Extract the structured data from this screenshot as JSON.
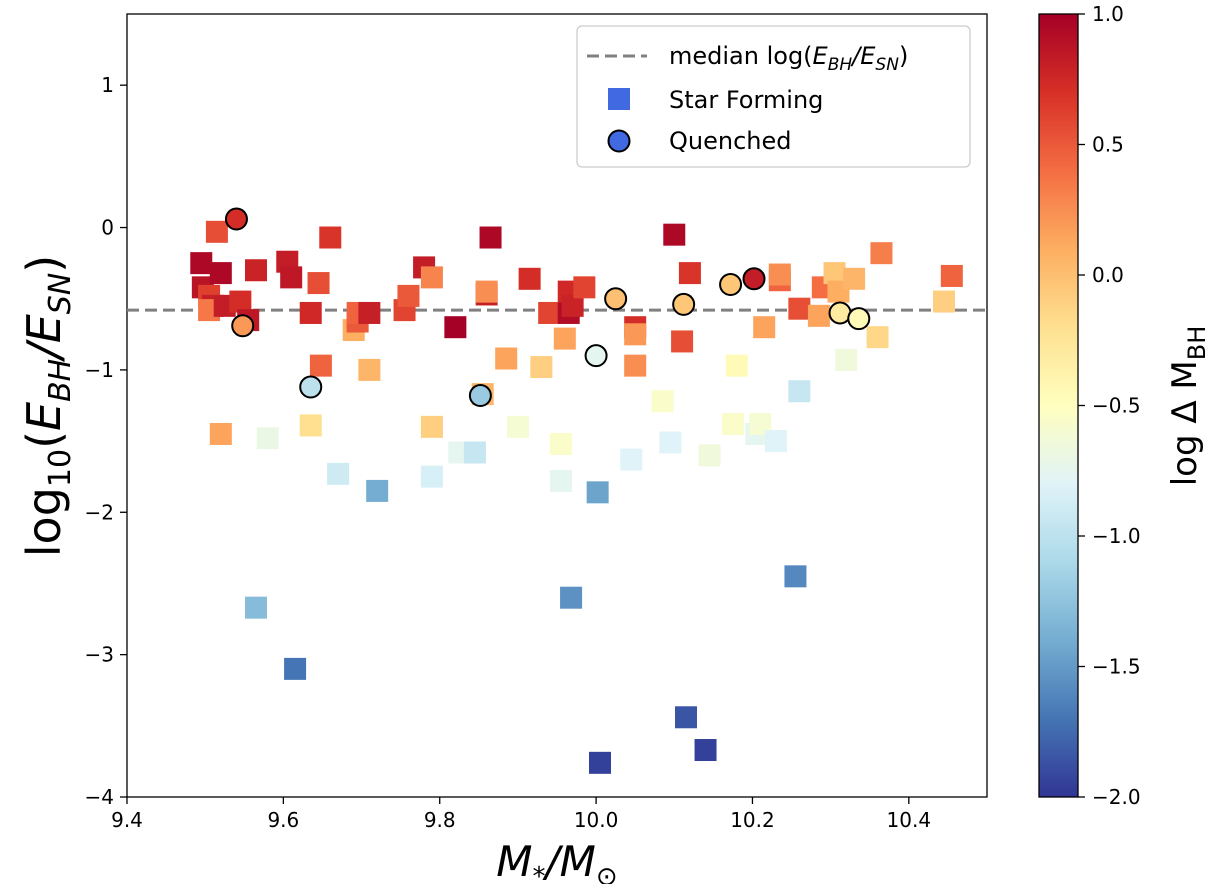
{
  "chart_data": {
    "type": "scatter",
    "xlabel": "M*/M⊙",
    "ylabel": "log10(EBH/ESN)",
    "xlim": [
      9.4,
      10.5
    ],
    "ylim": [
      -4,
      1.5
    ],
    "xticks": [
      "9.4",
      "9.6",
      "9.8",
      "10.0",
      "10.2",
      "10.4"
    ],
    "xtick_values": [
      9.4,
      9.6,
      9.8,
      10.0,
      10.2,
      10.4
    ],
    "yticks": [
      "−4",
      "−3",
      "−2",
      "−1",
      "0",
      "1"
    ],
    "ytick_values": [
      -4,
      -3,
      -2,
      -1,
      0,
      1
    ],
    "grid": false,
    "legend_position": "top-right",
    "legend": {
      "median_label": "median log(EBH/ESN)",
      "star_forming_label": "Star Forming",
      "quenched_label": "Quenched"
    },
    "median_log_ratio": -0.58,
    "colorbar": {
      "label": "log Δ MBH",
      "range": [
        -2.0,
        1.0
      ],
      "ticks": [
        "−2.0",
        "−1.5",
        "−1.0",
        "−0.5",
        "0.0",
        "0.5",
        "1.0"
      ],
      "tick_values": [
        -2.0,
        -1.5,
        -1.0,
        -0.5,
        0.0,
        0.5,
        1.0
      ],
      "colormap": "RdYlBu_r"
    },
    "series": [
      {
        "name": "Star Forming",
        "marker": "square",
        "points": [
          [
            9.495,
            -0.25,
            0.95
          ],
          [
            9.497,
            -0.42,
            0.88
          ],
          [
            9.505,
            -0.48,
            0.62
          ],
          [
            9.51,
            -0.55,
            0.8
          ],
          [
            9.505,
            -0.58,
            0.35
          ],
          [
            9.515,
            -0.03,
            0.55
          ],
          [
            9.52,
            -0.32,
            0.95
          ],
          [
            9.525,
            -0.55,
            0.82
          ],
          [
            9.52,
            -1.45,
            0.15
          ],
          [
            9.545,
            -0.52,
            0.72
          ],
          [
            9.555,
            -0.65,
            0.85
          ],
          [
            9.565,
            -0.3,
            0.78
          ],
          [
            9.565,
            -2.67,
            -1.3
          ],
          [
            9.58,
            -1.48,
            -0.7
          ],
          [
            9.605,
            -0.24,
            0.82
          ],
          [
            9.61,
            -0.35,
            0.85
          ],
          [
            9.615,
            -3.1,
            -1.7
          ],
          [
            9.635,
            -0.6,
            0.75
          ],
          [
            9.635,
            -1.39,
            -0.2
          ],
          [
            9.645,
            -0.39,
            0.55
          ],
          [
            9.648,
            -0.97,
            0.45
          ],
          [
            9.66,
            -0.07,
            0.68
          ],
          [
            9.67,
            -1.73,
            -0.9
          ],
          [
            9.69,
            -0.72,
            0.1
          ],
          [
            9.695,
            -0.66,
            0.5
          ],
          [
            9.695,
            -0.6,
            0.45
          ],
          [
            9.71,
            -0.6,
            0.8
          ],
          [
            9.71,
            -1.0,
            0.05
          ],
          [
            9.72,
            -1.85,
            -1.4
          ],
          [
            9.755,
            -0.58,
            0.6
          ],
          [
            9.76,
            -0.48,
            0.5
          ],
          [
            9.78,
            -0.28,
            0.82
          ],
          [
            9.79,
            -0.35,
            0.3
          ],
          [
            9.79,
            -1.75,
            -0.85
          ],
          [
            9.79,
            -1.4,
            -0.1
          ],
          [
            9.82,
            -0.7,
            1.0
          ],
          [
            9.825,
            -1.58,
            -0.75
          ],
          [
            9.845,
            -1.58,
            -0.95
          ],
          [
            9.855,
            -1.17,
            0.05
          ],
          [
            9.86,
            -0.47,
            0.8
          ],
          [
            9.865,
            -0.07,
            0.95
          ],
          [
            9.86,
            -0.45,
            0.25
          ],
          [
            9.885,
            -0.92,
            0.15
          ],
          [
            9.9,
            -1.4,
            -0.6
          ],
          [
            9.915,
            -0.36,
            0.72
          ],
          [
            9.93,
            -0.98,
            -0.1
          ],
          [
            9.94,
            -0.6,
            0.6
          ],
          [
            9.955,
            -1.52,
            -0.55
          ],
          [
            9.955,
            -1.78,
            -0.75
          ],
          [
            9.96,
            -0.78,
            0.15
          ],
          [
            9.965,
            -0.6,
            0.92
          ],
          [
            9.965,
            -0.45,
            0.75
          ],
          [
            9.97,
            -0.55,
            0.78
          ],
          [
            9.968,
            -2.6,
            -1.55
          ],
          [
            9.985,
            -0.42,
            0.6
          ],
          [
            10.002,
            -1.86,
            -1.45
          ],
          [
            10.045,
            -1.63,
            -0.8
          ],
          [
            10.05,
            -0.7,
            0.72
          ],
          [
            10.05,
            -0.75,
            0.2
          ],
          [
            10.05,
            -0.97,
            0.25
          ],
          [
            10.085,
            -1.22,
            -0.55
          ],
          [
            10.095,
            -1.51,
            -0.8
          ],
          [
            10.1,
            -0.05,
            0.95
          ],
          [
            10.11,
            -0.8,
            0.55
          ],
          [
            10.115,
            -3.44,
            -1.85
          ],
          [
            10.12,
            -0.32,
            0.68
          ],
          [
            10.14,
            -3.67,
            -1.95
          ],
          [
            10.145,
            -1.6,
            -0.65
          ],
          [
            10.175,
            -1.38,
            -0.55
          ],
          [
            10.18,
            -0.97,
            -0.45
          ],
          [
            10.205,
            -1.45,
            -0.75
          ],
          [
            10.21,
            -1.38,
            -0.6
          ],
          [
            10.215,
            -0.7,
            0.15
          ],
          [
            10.23,
            -1.5,
            -0.8
          ],
          [
            10.235,
            -0.37,
            0.45
          ],
          [
            10.235,
            -0.33,
            0.25
          ],
          [
            10.255,
            -2.45,
            -1.6
          ],
          [
            10.26,
            -1.15,
            -0.95
          ],
          [
            10.26,
            -0.57,
            0.55
          ],
          [
            10.285,
            -0.62,
            0.15
          ],
          [
            10.29,
            -0.42,
            0.4
          ],
          [
            10.305,
            -0.32,
            -0.05
          ],
          [
            10.31,
            -0.45,
            0.1
          ],
          [
            10.32,
            -0.93,
            -0.65
          ],
          [
            10.33,
            -0.36,
            0.05
          ],
          [
            10.36,
            -0.77,
            -0.15
          ],
          [
            10.365,
            -0.18,
            0.32
          ],
          [
            10.445,
            -0.52,
            -0.1
          ],
          [
            10.455,
            -0.34,
            0.45
          ],
          [
            10.005,
            -3.76,
            -1.95
          ]
        ]
      },
      {
        "name": "Quenched",
        "marker": "circle",
        "points": [
          [
            9.54,
            0.06,
            0.72
          ],
          [
            9.548,
            -0.69,
            0.2
          ],
          [
            9.635,
            -1.12,
            -1.0
          ],
          [
            9.852,
            -1.18,
            -1.2
          ],
          [
            10.0,
            -0.9,
            -0.75
          ],
          [
            10.025,
            -0.5,
            0.0
          ],
          [
            10.112,
            -0.54,
            -0.05
          ],
          [
            10.172,
            -0.4,
            -0.05
          ],
          [
            10.202,
            -0.36,
            0.82
          ],
          [
            10.312,
            -0.6,
            -0.3
          ],
          [
            10.336,
            -0.64,
            -0.45
          ]
        ]
      }
    ]
  }
}
